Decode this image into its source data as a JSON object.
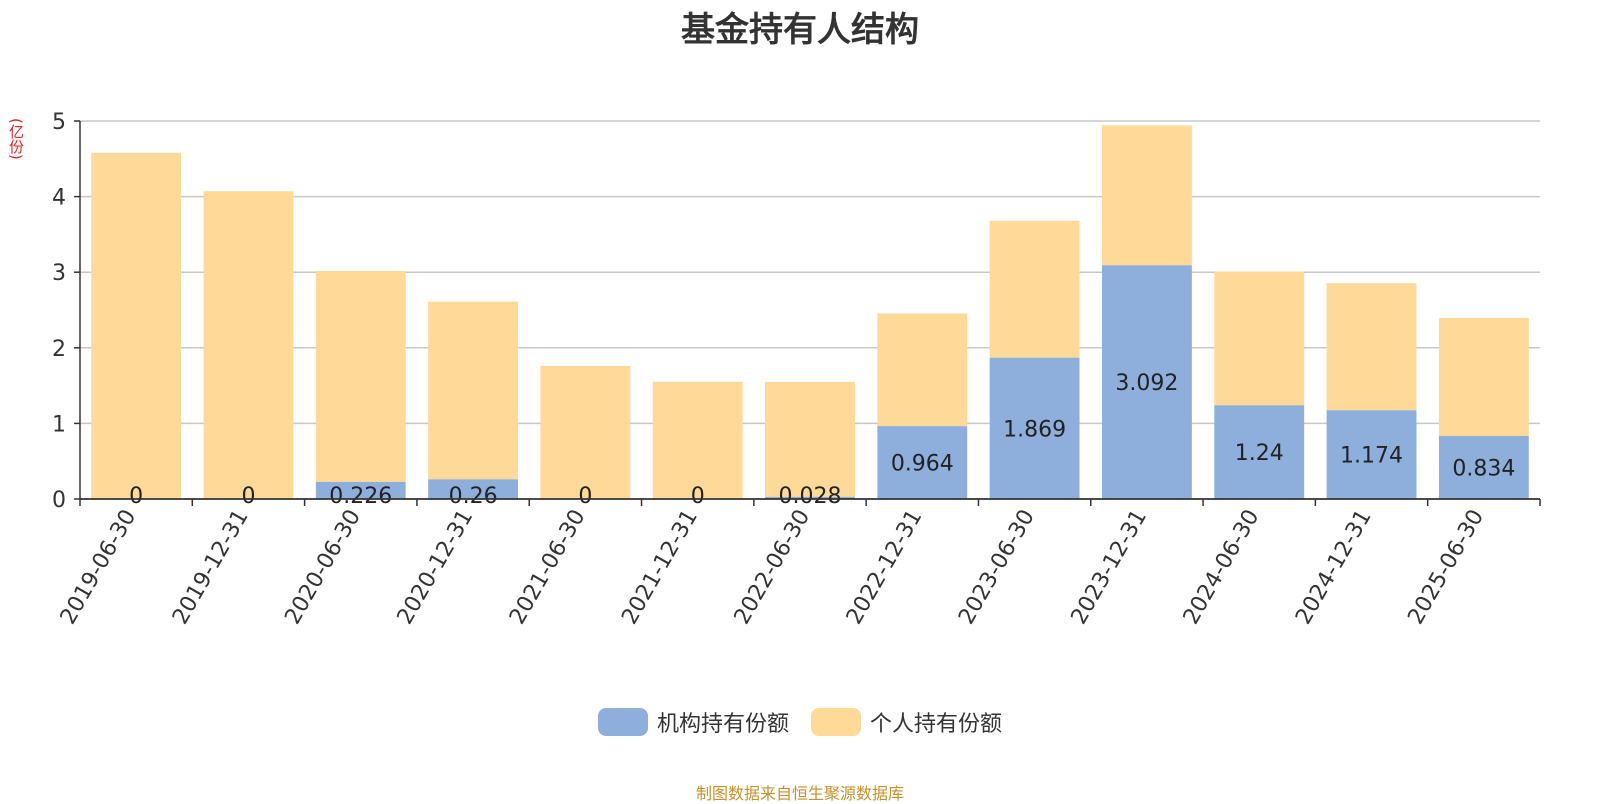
{
  "chart_data": {
    "type": "bar",
    "stacked": true,
    "title": "基金持有人结构",
    "unit_label": "(亿份)",
    "categories": [
      "2019-06-30",
      "2019-12-31",
      "2020-06-30",
      "2020-12-31",
      "2021-06-30",
      "2021-12-31",
      "2022-06-30",
      "2022-12-31",
      "2023-06-30",
      "2023-12-31",
      "2024-06-30",
      "2024-12-31",
      "2025-06-30"
    ],
    "series": [
      {
        "name": "机构持有份额",
        "color": "#8eaedb",
        "values": [
          0,
          0,
          0.226,
          0.26,
          0,
          0,
          0.028,
          0.964,
          1.869,
          3.092,
          1.24,
          1.174,
          0.834
        ],
        "labels": [
          "0",
          "0",
          "0.226",
          "0.26",
          "0",
          "0",
          "0.028",
          "0.964",
          "1.869",
          "3.092",
          "1.24",
          "1.174",
          "0.834"
        ]
      },
      {
        "name": "个人持有份额",
        "color": "#fed998",
        "values": [
          4.58,
          4.07,
          2.79,
          2.35,
          1.76,
          1.55,
          1.52,
          1.49,
          1.81,
          1.85,
          1.77,
          1.68,
          1.56
        ]
      }
    ],
    "ylim": [
      0,
      5
    ],
    "yticks": [
      0,
      1,
      2,
      3,
      4,
      5
    ],
    "grid": true,
    "legend_position": "bottom"
  },
  "footer": {
    "source": "制图数据来自恒生聚源数据库"
  }
}
